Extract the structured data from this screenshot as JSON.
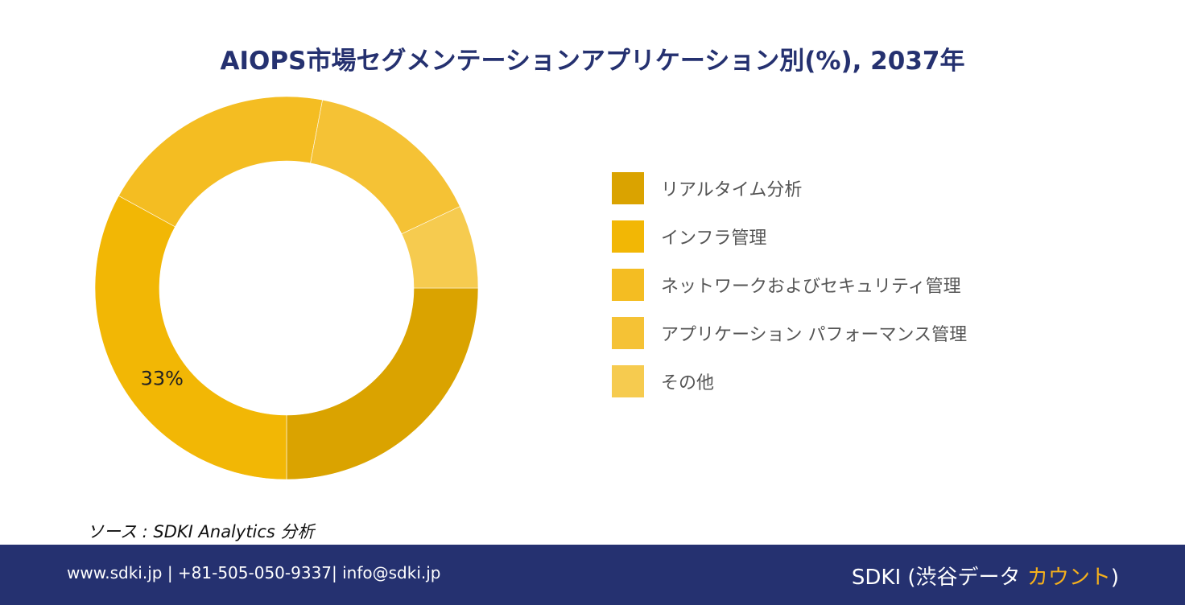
{
  "title": "AIOPS市場セグメンテーションアプリケーション別(%), 2037年",
  "chart_data": {
    "type": "donut",
    "title": "AIOPS市場セグメンテーションアプリケーション別(%), 2037年",
    "categories": [
      "リアルタイム分析",
      "インフラ管理",
      "ネットワークおよびセキュリティ管理",
      "アプリケーション パフォーマンス管理",
      "その他"
    ],
    "values": [
      25,
      33,
      20,
      15,
      7
    ],
    "colors": [
      "#DAA300",
      "#F2B705",
      "#F4BD22",
      "#F5C235",
      "#F6CB4F"
    ],
    "data_labels": [
      {
        "category": "インフラ管理",
        "text": "33%"
      }
    ],
    "legend_position": "right"
  },
  "legend": [
    {
      "label": "リアルタイム分析",
      "color": "#DAA300"
    },
    {
      "label": "インフラ管理",
      "color": "#F2B705"
    },
    {
      "label": "ネットワークおよびセキュリティ管理",
      "color": "#F4BD22"
    },
    {
      "label": "アプリケーション パフォーマンス管理",
      "color": "#F5C235"
    },
    {
      "label": "その他",
      "color": "#F6CB4F"
    }
  ],
  "source": "ソース : SDKI Analytics  分析",
  "footer": {
    "contact": "www.sdki.jp | +81-505-050-9337| info@sdki.jp",
    "brand_main": "SDKI (渋谷データ ",
    "brand_accent": "カウント",
    "brand_end": ")",
    "background": "#253170",
    "accent_color": "#F5B01C"
  }
}
